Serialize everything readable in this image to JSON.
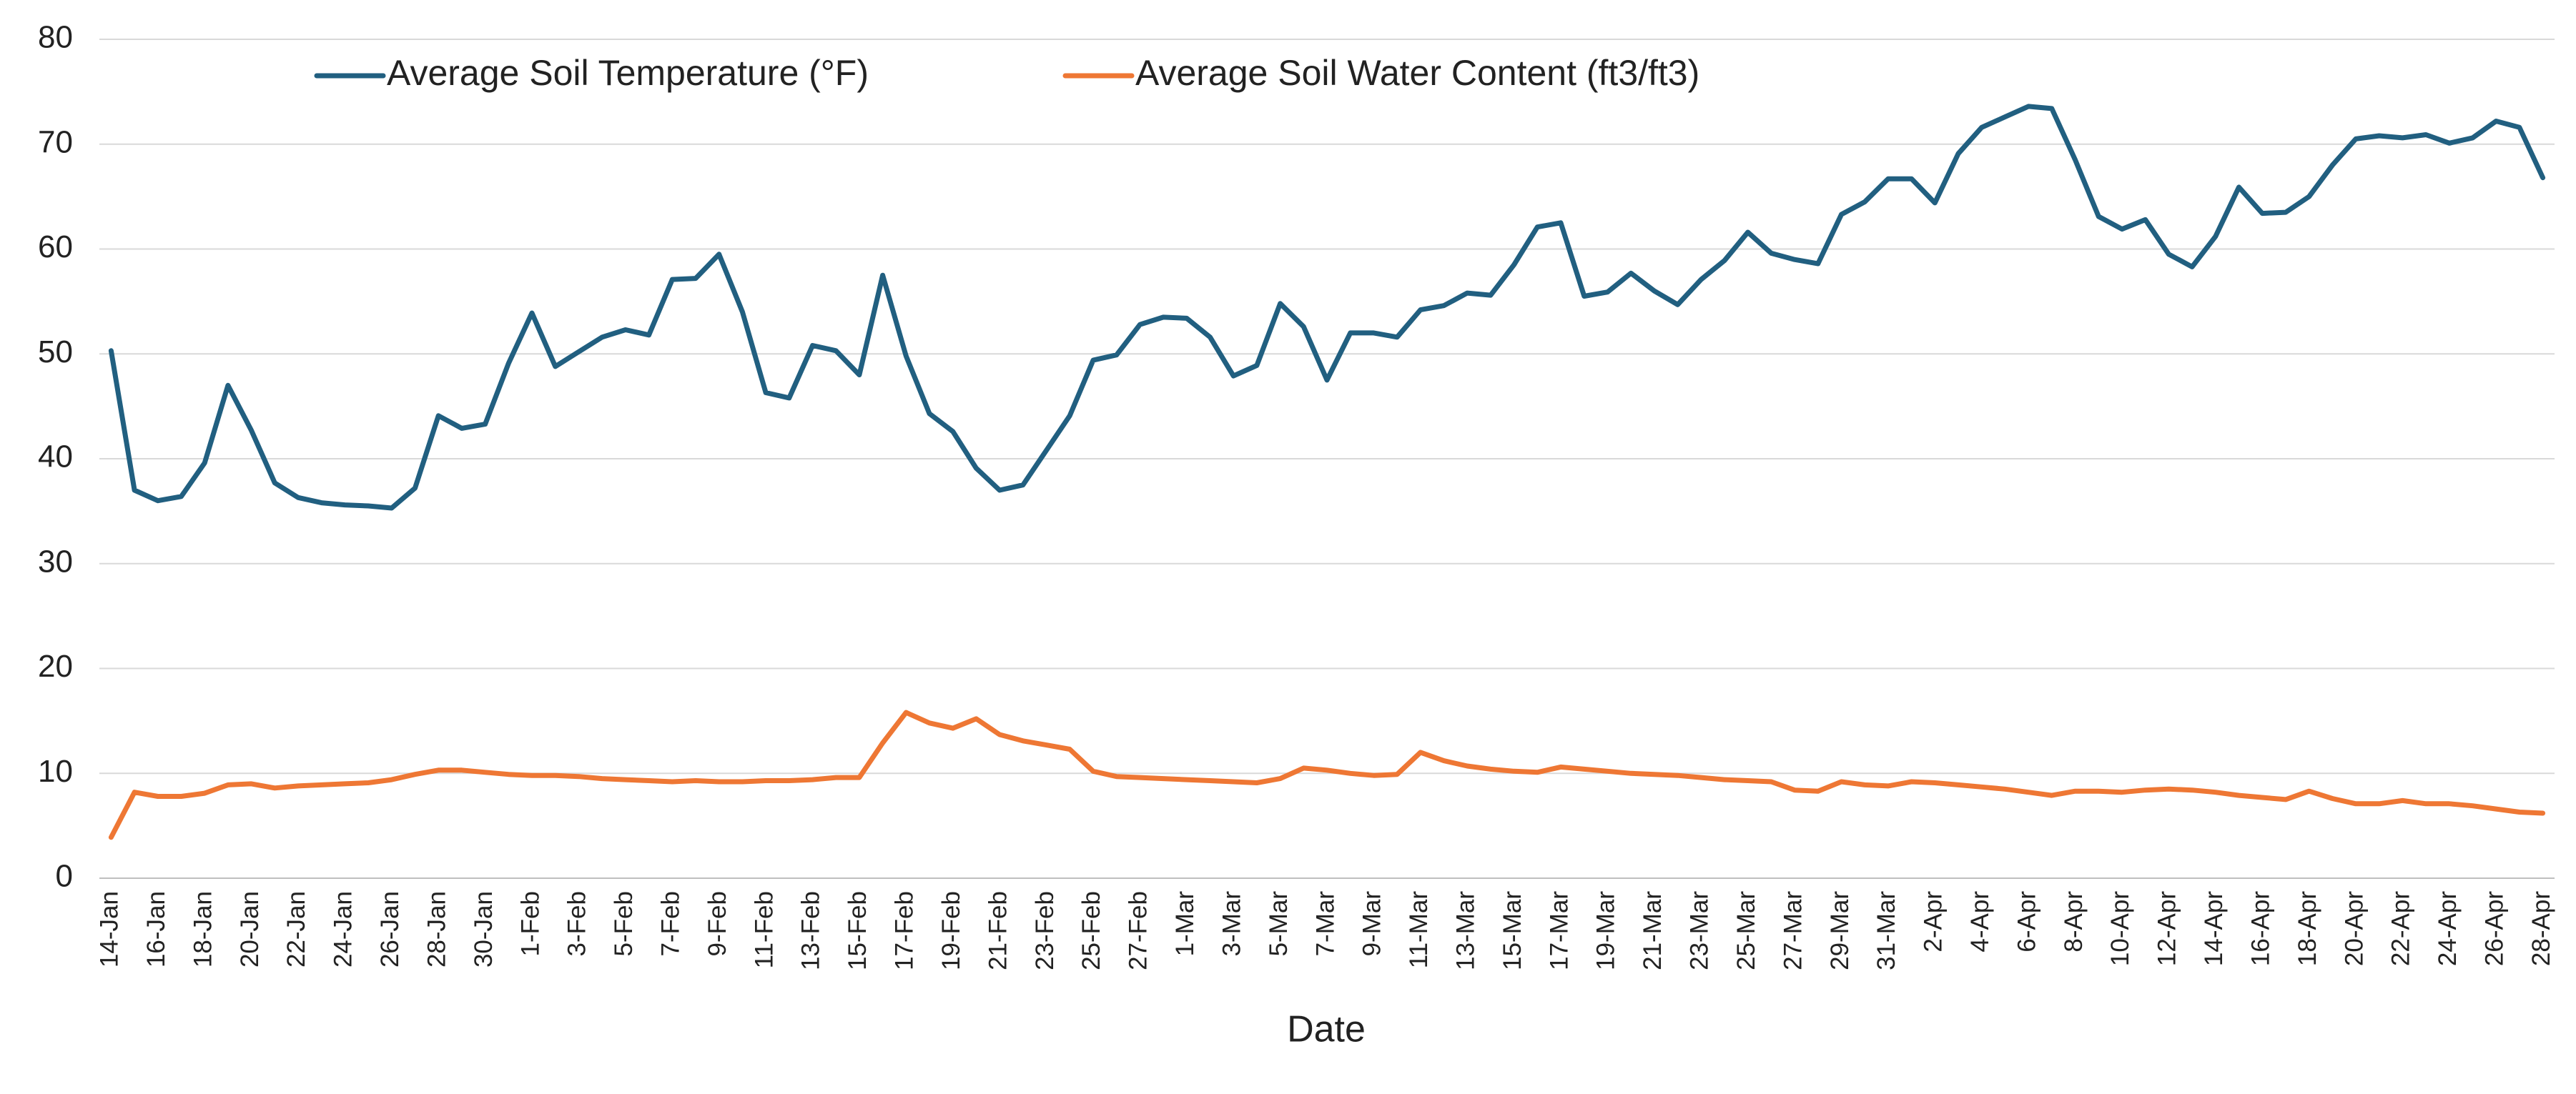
{
  "chart_data": {
    "type": "line",
    "x_label": "Date",
    "categories": [
      "14-Jan",
      null,
      "16-Jan",
      null,
      "18-Jan",
      null,
      "20-Jan",
      null,
      "22-Jan",
      null,
      "24-Jan",
      null,
      "26-Jan",
      null,
      "28-Jan",
      null,
      "30-Jan",
      null,
      "1-Feb",
      null,
      "3-Feb",
      null,
      "5-Feb",
      null,
      "7-Feb",
      null,
      "9-Feb",
      null,
      "11-Feb",
      null,
      "13-Feb",
      null,
      "15-Feb",
      null,
      "17-Feb",
      null,
      "19-Feb",
      null,
      "21-Feb",
      null,
      "23-Feb",
      null,
      "25-Feb",
      null,
      "27-Feb",
      null,
      "1-Mar",
      null,
      "3-Mar",
      null,
      "5-Mar",
      null,
      "7-Mar",
      null,
      "9-Mar",
      null,
      "11-Mar",
      null,
      "13-Mar",
      null,
      "15-Mar",
      null,
      "17-Mar",
      null,
      "19-Mar",
      null,
      "21-Mar",
      null,
      "23-Mar",
      null,
      "25-Mar",
      null,
      "27-Mar",
      null,
      "29-Mar",
      null,
      "31-Mar",
      null,
      "2-Apr",
      null,
      "4-Apr",
      null,
      "6-Apr",
      null,
      "8-Apr",
      null,
      "10-Apr",
      null,
      "12-Apr",
      null,
      "14-Apr",
      null,
      "16-Apr",
      null,
      "18-Apr",
      null,
      "20-Apr",
      null,
      "22-Apr",
      null,
      "24-Apr",
      null,
      "26-Apr",
      null,
      "28-Apr"
    ],
    "series": [
      {
        "name": "Average Soil Temperature (°F)",
        "color": "#215f80",
        "values": [
          50.3,
          37,
          36,
          36.4,
          39.6,
          47,
          42.7,
          37.7,
          36.3,
          35.8,
          35.6,
          35.5,
          35.3,
          37.2,
          44.1,
          42.9,
          43.3,
          49.1,
          53.9,
          48.8,
          50.2,
          51.6,
          52.3,
          51.8,
          57.1,
          57.2,
          59.5,
          54,
          46.3,
          45.8,
          50.8,
          50.3,
          48,
          57.5,
          49.8,
          44.3,
          42.6,
          39.1,
          37,
          37.5,
          40.8,
          44.1,
          49.4,
          49.9,
          52.8,
          53.5,
          53.4,
          51.6,
          47.9,
          48.9,
          54.8,
          52.6,
          47.5,
          52,
          52,
          51.6,
          54.2,
          54.6,
          55.8,
          55.6,
          58.5,
          62.1,
          62.5,
          55.5,
          55.9,
          57.7,
          56,
          54.7,
          57.1,
          58.9,
          61.6,
          59.6,
          59,
          58.6,
          63.3,
          64.5,
          66.7,
          66.7,
          64.4,
          69.1,
          71.6,
          72.6,
          73.6,
          73.4,
          68.5,
          63.1,
          61.9,
          62.8,
          59.5,
          58.3,
          61.2,
          65.9,
          63.4,
          63.5,
          65,
          68,
          70.5,
          70.8,
          70.6,
          70.9,
          70.1,
          70.6,
          72.2,
          71.6,
          66.8
        ]
      },
      {
        "name": "Average Soil Water Content (ft3/ft3)",
        "color": "#ee7734",
        "values": [
          3.9,
          8.2,
          7.8,
          7.8,
          8.1,
          8.9,
          9,
          8.6,
          8.8,
          8.9,
          9,
          9.1,
          9.4,
          9.9,
          10.3,
          10.3,
          10.1,
          9.9,
          9.8,
          9.8,
          9.7,
          9.5,
          9.4,
          9.3,
          9.2,
          9.3,
          9.2,
          9.2,
          9.3,
          9.3,
          9.4,
          9.6,
          9.6,
          12.9,
          15.8,
          14.8,
          14.3,
          15.2,
          13.7,
          13.1,
          12.7,
          12.3,
          10.2,
          9.7,
          9.6,
          9.5,
          9.4,
          9.3,
          9.2,
          9.1,
          9.5,
          10.5,
          10.3,
          10,
          9.8,
          9.9,
          12,
          11.2,
          10.7,
          10.4,
          10.2,
          10.1,
          10.6,
          10.4,
          10.2,
          10,
          9.9,
          9.8,
          9.6,
          9.4,
          9.3,
          9.2,
          8.4,
          8.3,
          9.2,
          8.9,
          8.8,
          9.2,
          9.1,
          8.9,
          8.7,
          8.5,
          8.2,
          7.9,
          8.3,
          8.3,
          8.2,
          8.4,
          8.5,
          8.4,
          8.2,
          7.9,
          7.7,
          7.5,
          8.3,
          7.6,
          7.1,
          7.1,
          7.4,
          7.1,
          7.1,
          6.9,
          6.6,
          6.3,
          6.2
        ]
      }
    ],
    "ylim": [
      0,
      80
    ],
    "yticks": [
      0,
      10,
      20,
      30,
      40,
      50,
      60,
      70,
      80
    ],
    "grid": true
  }
}
